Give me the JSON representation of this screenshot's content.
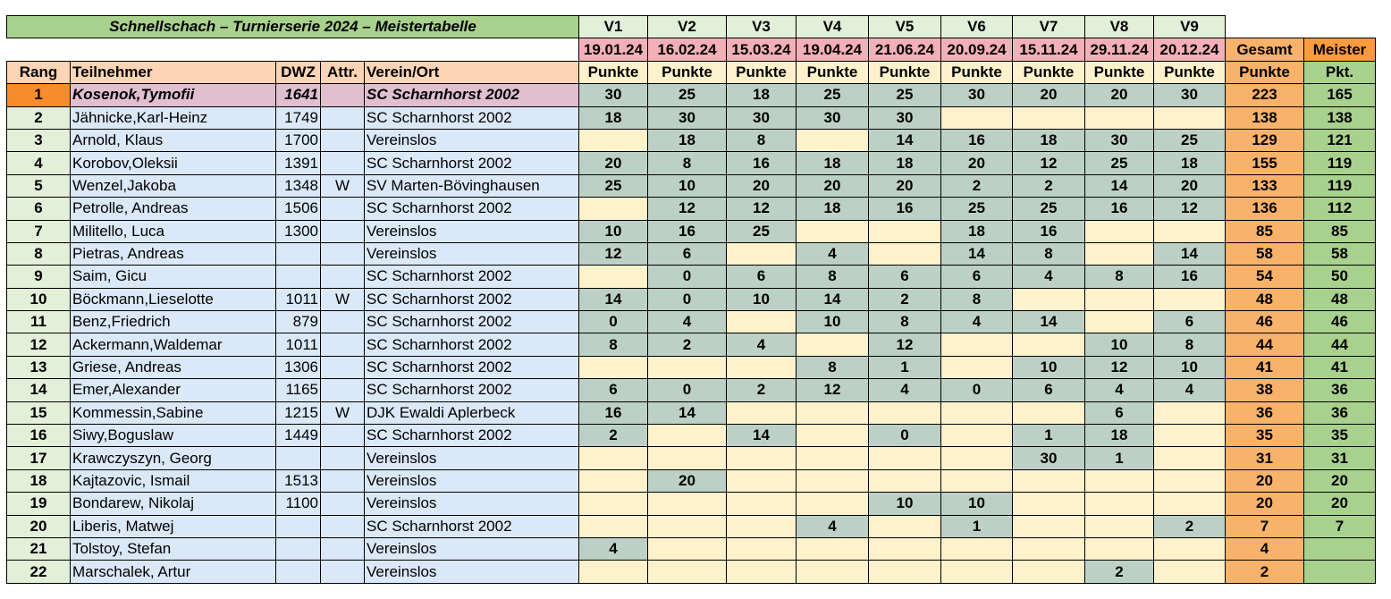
{
  "title": "Schnellschach – Turnierserie 2024 – Meistertabelle",
  "events": [
    {
      "label": "V1",
      "date": "19.01.24"
    },
    {
      "label": "V2",
      "date": "16.02.24"
    },
    {
      "label": "V3",
      "date": "15.03.24"
    },
    {
      "label": "V4",
      "date": "19.04.24"
    },
    {
      "label": "V5",
      "date": "21.06.24"
    },
    {
      "label": "V6",
      "date": "20.09.24"
    },
    {
      "label": "V7",
      "date": "15.11.24"
    },
    {
      "label": "V8",
      "date": "29.11.24"
    },
    {
      "label": "V9",
      "date": "20.12.24"
    }
  ],
  "points_label": "Punkte",
  "total_header": "Gesamt",
  "total_sub": "Punkte",
  "meister_header": "Meister",
  "meister_sub": "Pkt.",
  "columns": {
    "rank": "Rang",
    "name": "Teilnehmer",
    "dwz": "DWZ",
    "attr": "Attr.",
    "club": "Verein/Ort"
  },
  "colors": {
    "title_bg": "#a9d18e",
    "first_rank": "#f88c2c",
    "first_row": "#e0bfcf",
    "score_played": "#bdd0c6",
    "score_empty": "#fdf2cc",
    "total": "#f8b26a",
    "meister": "#a9d18e"
  },
  "rows": [
    {
      "rank": "1",
      "name": "Kosenok,Tymofii",
      "dwz": "1641",
      "attr": "",
      "club": "SC Scharnhorst 2002",
      "scores": [
        "30",
        "25",
        "18",
        "25",
        "25",
        "30",
        "20",
        "20",
        "30"
      ],
      "total": "223",
      "meister": "165"
    },
    {
      "rank": "2",
      "name": "Jähnicke,Karl-Heinz",
      "dwz": "1749",
      "attr": "",
      "club": "SC Scharnhorst 2002",
      "scores": [
        "18",
        "30",
        "30",
        "30",
        "30",
        "",
        "",
        "",
        ""
      ],
      "total": "138",
      "meister": "138"
    },
    {
      "rank": "3",
      "name": "Arnold, Klaus",
      "dwz": "1700",
      "attr": "",
      "club": "Vereinslos",
      "scores": [
        "",
        "18",
        "8",
        "",
        "14",
        "16",
        "18",
        "30",
        "25"
      ],
      "total": "129",
      "meister": "121"
    },
    {
      "rank": "4",
      "name": "Korobov,Oleksii",
      "dwz": "1391",
      "attr": "",
      "club": "SC Scharnhorst 2002",
      "scores": [
        "20",
        "8",
        "16",
        "18",
        "18",
        "20",
        "12",
        "25",
        "18"
      ],
      "total": "155",
      "meister": "119"
    },
    {
      "rank": "5",
      "name": "Wenzel,Jakoba",
      "dwz": "1348",
      "attr": "W",
      "club": "SV Marten-Bövinghausen",
      "scores": [
        "25",
        "10",
        "20",
        "20",
        "20",
        "2",
        "2",
        "14",
        "20"
      ],
      "total": "133",
      "meister": "119"
    },
    {
      "rank": "6",
      "name": "Petrolle, Andreas",
      "dwz": "1506",
      "attr": "",
      "club": "SC Scharnhorst 2002",
      "scores": [
        "",
        "12",
        "12",
        "18",
        "16",
        "25",
        "25",
        "16",
        "12"
      ],
      "total": "136",
      "meister": "112"
    },
    {
      "rank": "7",
      "name": "Militello, Luca",
      "dwz": "1300",
      "attr": "",
      "club": "Vereinslos",
      "scores": [
        "10",
        "16",
        "25",
        "",
        "",
        "18",
        "16",
        "",
        ""
      ],
      "total": "85",
      "meister": "85"
    },
    {
      "rank": "8",
      "name": "Pietras, Andreas",
      "dwz": "",
      "attr": "",
      "club": "Vereinslos",
      "scores": [
        "12",
        "6",
        "",
        "4",
        "",
        "14",
        "8",
        "",
        "14"
      ],
      "total": "58",
      "meister": "58"
    },
    {
      "rank": "9",
      "name": "Saim, Gicu",
      "dwz": "",
      "attr": "",
      "club": "SC Scharnhorst 2002",
      "scores": [
        "",
        "0",
        "6",
        "8",
        "6",
        "6",
        "4",
        "8",
        "16"
      ],
      "total": "54",
      "meister": "50"
    },
    {
      "rank": "10",
      "name": "Böckmann,Lieselotte",
      "dwz": "1011",
      "attr": "W",
      "club": "SC Scharnhorst 2002",
      "scores": [
        "14",
        "0",
        "10",
        "14",
        "2",
        "8",
        "",
        "",
        ""
      ],
      "total": "48",
      "meister": "48"
    },
    {
      "rank": "11",
      "name": "Benz,Friedrich",
      "dwz": "879",
      "attr": "",
      "club": "SC Scharnhorst 2002",
      "scores": [
        "0",
        "4",
        "",
        "10",
        "8",
        "4",
        "14",
        "",
        "6"
      ],
      "total": "46",
      "meister": "46"
    },
    {
      "rank": "12",
      "name": "Ackermann,Waldemar",
      "dwz": "1011",
      "attr": "",
      "club": "SC Scharnhorst 2002",
      "scores": [
        "8",
        "2",
        "4",
        "",
        "12",
        "",
        "",
        "10",
        "8"
      ],
      "total": "44",
      "meister": "44"
    },
    {
      "rank": "13",
      "name": "Griese, Andreas",
      "dwz": "1306",
      "attr": "",
      "club": "SC Scharnhorst 2002",
      "scores": [
        "",
        "",
        "",
        "8",
        "1",
        "",
        "10",
        "12",
        "10"
      ],
      "total": "41",
      "meister": "41"
    },
    {
      "rank": "14",
      "name": "Emer,Alexander",
      "dwz": "1165",
      "attr": "",
      "club": "SC Scharnhorst 2002",
      "scores": [
        "6",
        "0",
        "2",
        "12",
        "4",
        "0",
        "6",
        "4",
        "4"
      ],
      "total": "38",
      "meister": "36"
    },
    {
      "rank": "15",
      "name": "Kommessin,Sabine",
      "dwz": "1215",
      "attr": "W",
      "club": "DJK Ewaldi Aplerbeck",
      "scores": [
        "16",
        "14",
        "",
        "",
        "",
        "",
        "",
        "6",
        ""
      ],
      "total": "36",
      "meister": "36"
    },
    {
      "rank": "16",
      "name": "Siwy,Boguslaw",
      "dwz": "1449",
      "attr": "",
      "club": "SC Scharnhorst 2002",
      "scores": [
        "2",
        "",
        "14",
        "",
        "0",
        "",
        "1",
        "18",
        ""
      ],
      "total": "35",
      "meister": "35"
    },
    {
      "rank": "17",
      "name": "Krawczyszyn, Georg",
      "dwz": "",
      "attr": "",
      "club": "Vereinslos",
      "scores": [
        "",
        "",
        "",
        "",
        "",
        "",
        "30",
        "1",
        ""
      ],
      "total": "31",
      "meister": "31"
    },
    {
      "rank": "18",
      "name": "Kajtazovic, Ismail",
      "dwz": "1513",
      "attr": "",
      "club": "Vereinslos",
      "scores": [
        "",
        "20",
        "",
        "",
        "",
        "",
        "",
        "",
        ""
      ],
      "total": "20",
      "meister": "20"
    },
    {
      "rank": "19",
      "name": "Bondarew, Nikolaj",
      "dwz": "1100",
      "attr": "",
      "club": "Vereinslos",
      "scores": [
        "",
        "",
        "",
        "",
        "10",
        "10",
        "",
        "",
        ""
      ],
      "total": "20",
      "meister": "20"
    },
    {
      "rank": "20",
      "name": "Liberis, Matwej",
      "dwz": "",
      "attr": "",
      "club": "SC Scharnhorst 2002",
      "scores": [
        "",
        "",
        "",
        "4",
        "",
        "1",
        "",
        "",
        "2"
      ],
      "total": "7",
      "meister": "7"
    },
    {
      "rank": "21",
      "name": "Tolstoy, Stefan",
      "dwz": "",
      "attr": "",
      "club": "Vereinslos",
      "scores": [
        "4",
        "",
        "",
        "",
        "",
        "",
        "",
        "",
        ""
      ],
      "total": "4",
      "meister": ""
    },
    {
      "rank": "22",
      "name": "Marschalek, Artur",
      "dwz": "",
      "attr": "",
      "club": "Vereinslos",
      "scores": [
        "",
        "",
        "",
        "",
        "",
        "",
        "",
        "2",
        ""
      ],
      "total": "2",
      "meister": ""
    }
  ]
}
